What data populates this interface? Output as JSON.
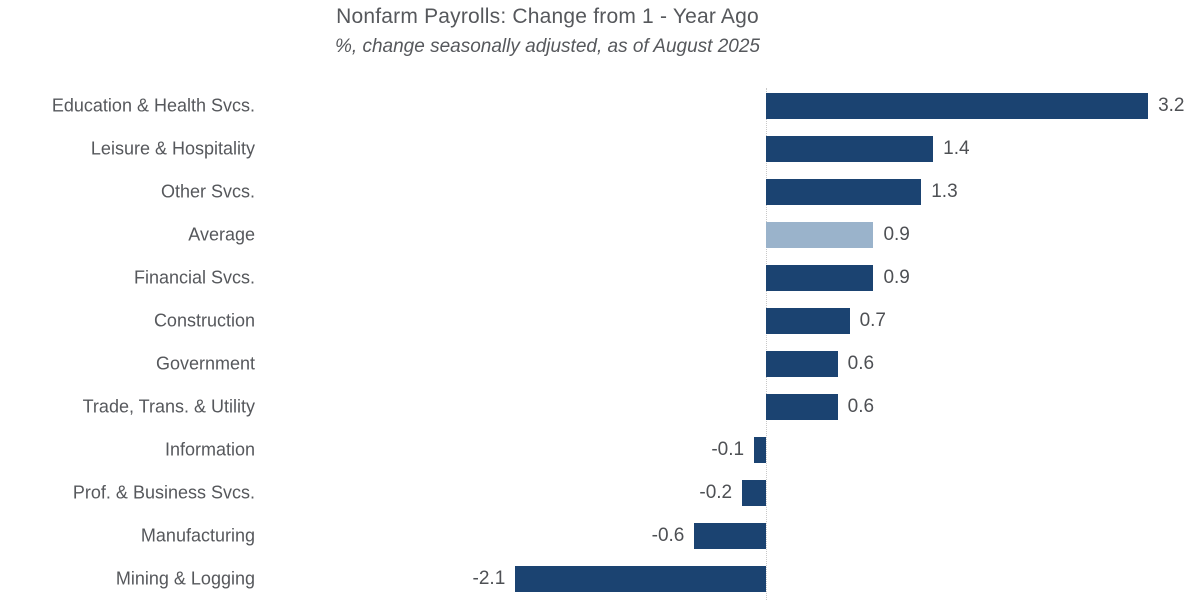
{
  "chart_data": {
    "type": "bar",
    "orientation": "horizontal",
    "title": "Nonfarm Payrolls: Change from 1 - Year Ago",
    "subtitle": "%, change seasonally adjusted, as of August 2025",
    "categories": [
      "Education & Health Svcs.",
      "Leisure & Hospitality",
      "Other Svcs.",
      "Average",
      "Financial Svcs.",
      "Construction",
      "Government",
      "Trade, Trans. & Utility",
      "Information",
      "Prof. & Business Svcs.",
      "Manufacturing",
      "Mining & Logging"
    ],
    "values": [
      3.2,
      1.4,
      1.3,
      0.9,
      0.9,
      0.7,
      0.6,
      0.6,
      -0.1,
      -0.2,
      -0.6,
      -2.1
    ],
    "value_labels": [
      "3.2",
      "1.4",
      "1.3",
      "0.9",
      "0.9",
      "0.7",
      "0.6",
      "0.6",
      "-0.1",
      "-0.2",
      "-0.6",
      "-2.1"
    ],
    "highlight_category": "Average",
    "bar_color": "#1B4371",
    "highlight_color": "#9AB3CB",
    "text_color": "#56585C",
    "value_text_color": "#4E5054",
    "zero_line_color": "#C8C8C8",
    "xlim": [
      -2.4,
      3.45
    ],
    "xlabel": "",
    "ylabel": "",
    "legend": "none",
    "grid": "zero-line-only"
  }
}
